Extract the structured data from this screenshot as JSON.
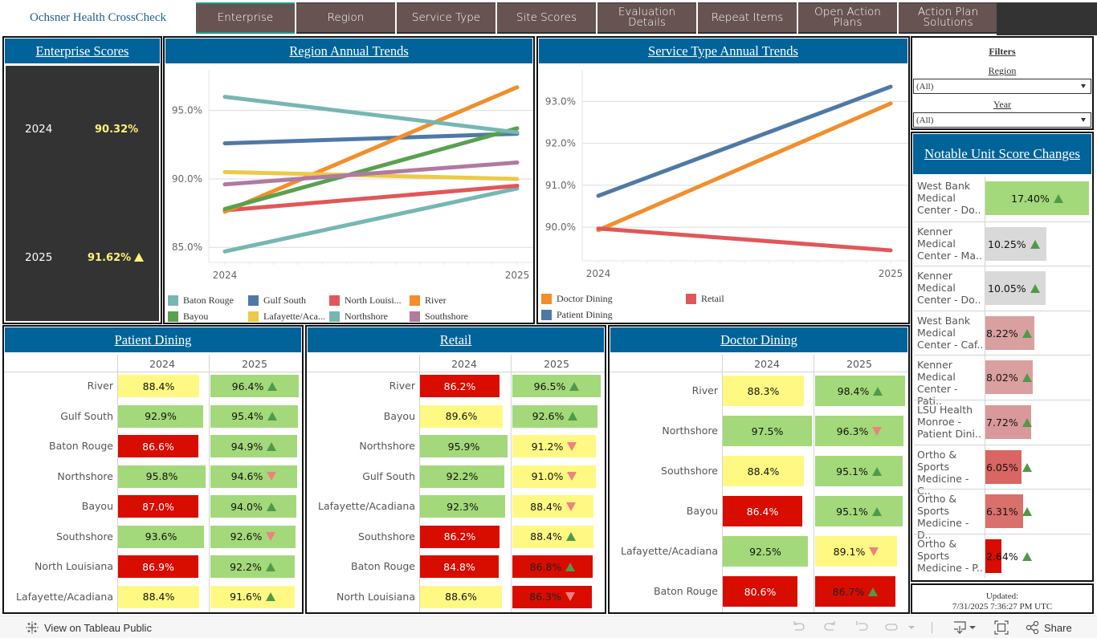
{
  "brand": "Ochsner Health CrossCheck",
  "nav": [
    {
      "label": "Enterprise",
      "active": true
    },
    {
      "label": "Region",
      "active": false
    },
    {
      "label": "Service Type",
      "active": false
    },
    {
      "label": "Site Scores",
      "active": false
    },
    {
      "label": "Evaluation Details",
      "active": false
    },
    {
      "label": "Repeat Items",
      "active": false
    },
    {
      "label": "Open Action Plans",
      "active": false
    },
    {
      "label": "Action Plan Solutions",
      "active": false
    }
  ],
  "enterprise": {
    "title": "Enterprise Scores",
    "rows": [
      {
        "year": "2024",
        "value": "90.32%",
        "trend": "none"
      },
      {
        "year": "2025",
        "value": "91.62%",
        "trend": "up"
      }
    ]
  },
  "filters": {
    "title": "Filters",
    "region_label": "Region",
    "region_value": "(All)",
    "year_label": "Year",
    "year_value": "(All)"
  },
  "notable": {
    "title": "Notable Unit Score Changes",
    "max_value": 17.4,
    "items": [
      {
        "label": "West Bank Medical Center - Do..",
        "value": "17.40%",
        "num": 17.4,
        "color": "#a3d97a",
        "trend": "up"
      },
      {
        "label": "Kenner Medical Center - Ma..",
        "value": "10.25%",
        "num": 10.25,
        "color": "#d9d9d9",
        "trend": "up"
      },
      {
        "label": "Kenner Medical Center - Do..",
        "value": "10.05%",
        "num": 10.05,
        "color": "#d9d9d9",
        "trend": "up"
      },
      {
        "label": "West Bank Medical Center - Caf..",
        "value": "8.22%",
        "num": 8.22,
        "color": "#d9a09f",
        "trend": "up"
      },
      {
        "label": "Kenner Medical Center - Pati..",
        "value": "8.02%",
        "num": 8.02,
        "color": "#d9a09f",
        "trend": "up"
      },
      {
        "label": "LSU Health Monroe - Patient Dini..",
        "value": "7.72%",
        "num": 7.72,
        "color": "#d9999a",
        "trend": "up"
      },
      {
        "label": "Ortho & Sports Medicine - C..",
        "value": "6.05%",
        "num": 6.05,
        "color": "#d96662",
        "trend": "up"
      },
      {
        "label": "Ortho & Sports Medicine - D..",
        "value": "6.31%",
        "num": 6.31,
        "color": "#d9706c",
        "trend": "up"
      },
      {
        "label": "Ortho & Sports Medicine - P..",
        "value": "2.64%",
        "num": 2.64,
        "color": "#d90c00",
        "trend": "up"
      }
    ]
  },
  "updated": {
    "label": "Updated:",
    "timestamp": "7/31/2025 7:36:27 PM UTC"
  },
  "chart_data": [
    {
      "id": "region",
      "type": "line",
      "title": "Region Annual Trends",
      "x": [
        "2024",
        "2025"
      ],
      "ylim": [
        83.9,
        97.5
      ],
      "yticks": [
        85.0,
        90.0,
        95.0
      ],
      "ytick_labels": [
        "85.0%",
        "90.0%",
        "95.0%"
      ],
      "grid": true,
      "legend_position": "bottom",
      "series": [
        {
          "name": "Baton Rouge",
          "color": "#76b7b2",
          "values": [
            84.7,
            89.3
          ]
        },
        {
          "name": "Gulf South",
          "color": "#4e79a7",
          "values": [
            92.6,
            93.3
          ]
        },
        {
          "name": "North Louisi...",
          "color": "#e15759",
          "values": [
            87.7,
            89.5
          ]
        },
        {
          "name": "River",
          "color": "#f28e2b",
          "values": [
            87.6,
            96.7
          ]
        },
        {
          "name": "Bayou",
          "color": "#59a14f",
          "values": [
            87.8,
            93.7
          ]
        },
        {
          "name": "Lafayette/Aca...",
          "color": "#edc948",
          "values": [
            90.5,
            90.0
          ]
        },
        {
          "name": "Northshore",
          "color": "#76b7b2",
          "values": [
            96.0,
            93.4
          ]
        },
        {
          "name": "Southshore",
          "color": "#b07aa1",
          "values": [
            89.6,
            91.2
          ]
        }
      ]
    },
    {
      "id": "service",
      "type": "line",
      "title": "Service Type Annual Trends",
      "x": [
        "2024",
        "2025"
      ],
      "ylim": [
        89.2,
        93.6
      ],
      "yticks": [
        90.0,
        91.0,
        92.0,
        93.0
      ],
      "ytick_labels": [
        "90.0%",
        "91.0%",
        "92.0%",
        "93.0%"
      ],
      "grid": true,
      "legend_position": "bottom",
      "series": [
        {
          "name": "Doctor Dining",
          "color": "#f28e2b",
          "values": [
            89.93,
            92.95
          ]
        },
        {
          "name": "Retail",
          "color": "#e15759",
          "values": [
            89.97,
            89.45
          ]
        },
        {
          "name": "Patient Dining",
          "color": "#4e79a7",
          "values": [
            90.75,
            93.35
          ]
        }
      ]
    }
  ],
  "tables": [
    {
      "id": "patient",
      "title": "Patient Dining",
      "columns": [
        "2024",
        "2025"
      ],
      "rows": [
        {
          "region": "River",
          "v2024": "88.4%",
          "n2024": 88.4,
          "c2024": "yellow",
          "v2025": "96.4%",
          "n2025": 96.4,
          "c2025": "green",
          "trend": "up"
        },
        {
          "region": "Gulf South",
          "v2024": "92.9%",
          "n2024": 92.9,
          "c2024": "green",
          "v2025": "95.4%",
          "n2025": 95.4,
          "c2025": "green",
          "trend": "up"
        },
        {
          "region": "Baton Rouge",
          "v2024": "86.6%",
          "n2024": 86.6,
          "c2024": "red",
          "v2025": "94.9%",
          "n2025": 94.9,
          "c2025": "green",
          "trend": "up"
        },
        {
          "region": "Northshore",
          "v2024": "95.8%",
          "n2024": 95.8,
          "c2024": "green",
          "v2025": "94.6%",
          "n2025": 94.6,
          "c2025": "green",
          "trend": "down"
        },
        {
          "region": "Bayou",
          "v2024": "87.0%",
          "n2024": 87.0,
          "c2024": "red",
          "v2025": "94.0%",
          "n2025": 94.0,
          "c2025": "green",
          "trend": "up"
        },
        {
          "region": "Southshore",
          "v2024": "93.6%",
          "n2024": 93.6,
          "c2024": "green",
          "v2025": "92.6%",
          "n2025": 92.6,
          "c2025": "green",
          "trend": "down"
        },
        {
          "region": "North Louisiana",
          "v2024": "86.9%",
          "n2024": 86.9,
          "c2024": "red",
          "v2025": "92.2%",
          "n2025": 92.2,
          "c2025": "green",
          "trend": "up"
        },
        {
          "region": "Lafayette/Acadiana",
          "v2024": "88.4%",
          "n2024": 88.4,
          "c2024": "yellow",
          "v2025": "91.6%",
          "n2025": 91.6,
          "c2025": "yellow",
          "trend": "up"
        }
      ]
    },
    {
      "id": "retail",
      "title": "Retail",
      "columns": [
        "2024",
        "2025"
      ],
      "rows": [
        {
          "region": "River",
          "v2024": "86.2%",
          "n2024": 86.2,
          "c2024": "red",
          "v2025": "96.5%",
          "n2025": 96.5,
          "c2025": "green",
          "trend": "up"
        },
        {
          "region": "Bayou",
          "v2024": "89.6%",
          "n2024": 89.6,
          "c2024": "yellow",
          "v2025": "92.6%",
          "n2025": 92.6,
          "c2025": "green",
          "trend": "up"
        },
        {
          "region": "Northshore",
          "v2024": "95.9%",
          "n2024": 95.9,
          "c2024": "green",
          "v2025": "91.2%",
          "n2025": 91.2,
          "c2025": "yellow",
          "trend": "down"
        },
        {
          "region": "Gulf South",
          "v2024": "92.2%",
          "n2024": 92.2,
          "c2024": "green",
          "v2025": "91.0%",
          "n2025": 91.0,
          "c2025": "yellow",
          "trend": "down"
        },
        {
          "region": "Lafayette/Acadiana",
          "v2024": "92.3%",
          "n2024": 92.3,
          "c2024": "green",
          "v2025": "88.4%",
          "n2025": 88.4,
          "c2025": "yellow",
          "trend": "down"
        },
        {
          "region": "Southshore",
          "v2024": "86.2%",
          "n2024": 86.2,
          "c2024": "red",
          "v2025": "88.4%",
          "n2025": 88.4,
          "c2025": "yellow",
          "trend": "up"
        },
        {
          "region": "Baton Rouge",
          "v2024": "84.8%",
          "n2024": 84.8,
          "c2024": "red",
          "v2025": "86.8%",
          "n2025": 86.8,
          "c2025": "red",
          "trend": "up"
        },
        {
          "region": "North Louisiana",
          "v2024": "88.6%",
          "n2024": 88.6,
          "c2024": "yellow",
          "v2025": "86.3%",
          "n2025": 86.3,
          "c2025": "red",
          "trend": "down"
        }
      ]
    },
    {
      "id": "doctor",
      "title": "Doctor Dining",
      "columns": [
        "2024",
        "2025"
      ],
      "rows": [
        {
          "region": "River",
          "v2024": "88.3%",
          "n2024": 88.3,
          "c2024": "yellow",
          "v2025": "98.4%",
          "n2025": 98.4,
          "c2025": "green",
          "trend": "up"
        },
        {
          "region": "Northshore",
          "v2024": "97.5%",
          "n2024": 97.5,
          "c2024": "green",
          "v2025": "96.3%",
          "n2025": 96.3,
          "c2025": "green",
          "trend": "down"
        },
        {
          "region": "Southshore",
          "v2024": "88.4%",
          "n2024": 88.4,
          "c2024": "yellow",
          "v2025": "95.1%",
          "n2025": 95.1,
          "c2025": "green",
          "trend": "up"
        },
        {
          "region": "Bayou",
          "v2024": "86.4%",
          "n2024": 86.4,
          "c2024": "red",
          "v2025": "95.1%",
          "n2025": 95.1,
          "c2025": "green",
          "trend": "up"
        },
        {
          "region": "Lafayette/Acadiana",
          "v2024": "92.5%",
          "n2024": 92.5,
          "c2024": "green",
          "v2025": "89.1%",
          "n2025": 89.1,
          "c2025": "yellow",
          "trend": "down"
        },
        {
          "region": "Baton Rouge",
          "v2024": "80.6%",
          "n2024": 80.6,
          "c2024": "red",
          "v2025": "86.7%",
          "n2025": 86.7,
          "c2025": "red",
          "trend": "up"
        }
      ]
    }
  ],
  "footer": {
    "view_link": "View on Tableau Public",
    "share_label": "Share",
    "tools": [
      "undo-icon",
      "redo-icon",
      "revert-icon",
      "refresh-icon",
      "refresh-dropdown-icon",
      "download-icon",
      "fullscreen-icon"
    ]
  }
}
